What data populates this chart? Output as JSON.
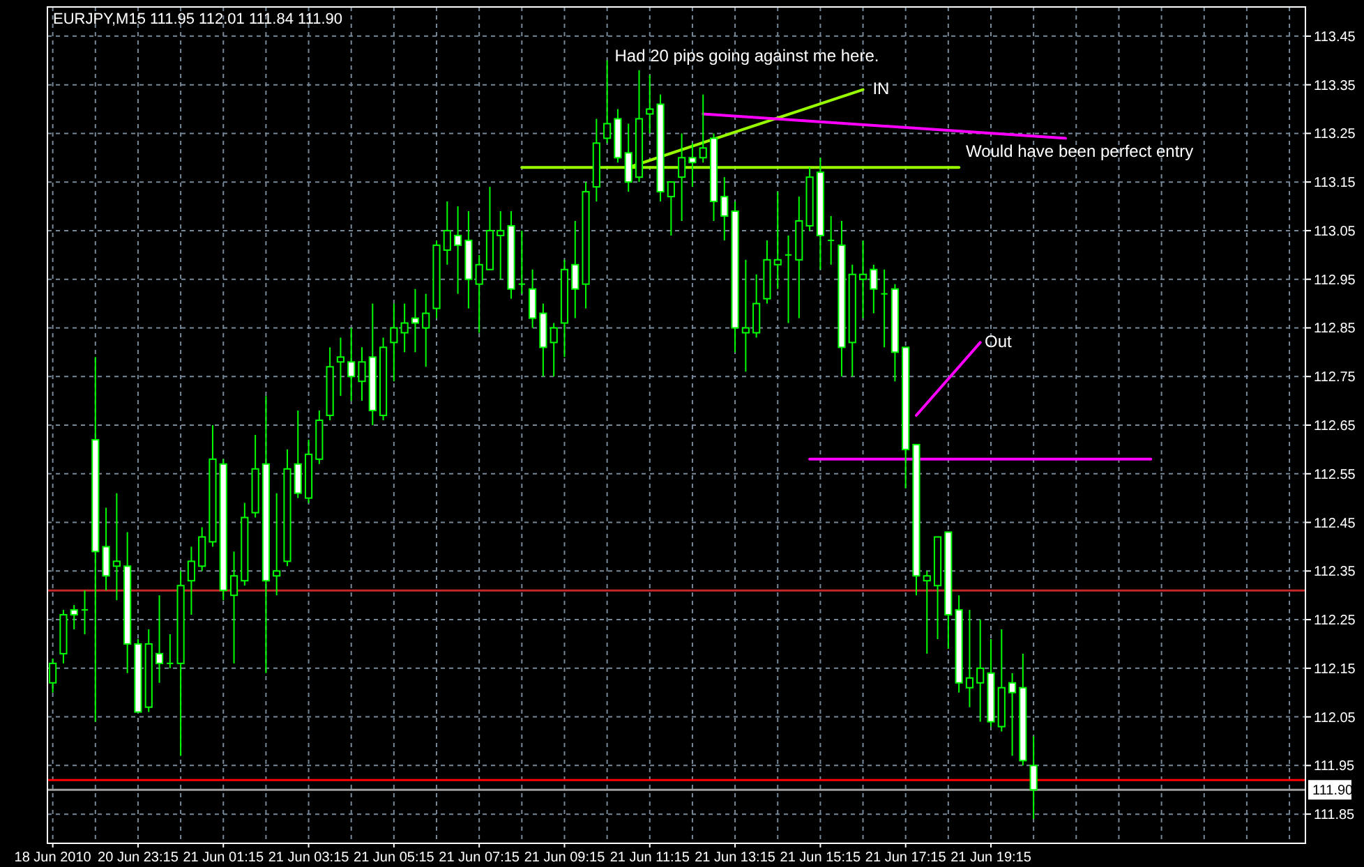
{
  "chart_data": {
    "type": "candlestick",
    "title": "EURJPY,M15  111.95 112.01 111.84 111.90",
    "categories": [
      "18 Jun 2010",
      null,
      null,
      null,
      null,
      null,
      null,
      null,
      "20 Jun 23:15",
      null,
      null,
      null,
      null,
      null,
      null,
      null,
      "21 Jun 01:15",
      null,
      null,
      null,
      null,
      null,
      null,
      null,
      "21 Jun 03:15",
      null,
      null,
      null,
      null,
      null,
      null,
      null,
      "21 Jun 05:15",
      null,
      null,
      null,
      null,
      null,
      null,
      null,
      "21 Jun 07:15",
      null,
      null,
      null,
      null,
      null,
      null,
      null,
      "21 Jun 09:15",
      null,
      null,
      null,
      null,
      null,
      null,
      null,
      "21 Jun 11:15",
      null,
      null,
      null,
      null,
      null,
      null,
      null,
      "21 Jun 13:15",
      null,
      null,
      null,
      null,
      null,
      null,
      null,
      "21 Jun 15:15",
      null,
      null,
      null,
      null,
      null,
      null,
      null,
      "21 Jun 17:15",
      null,
      null,
      null,
      null,
      null,
      null,
      null,
      "21 Jun 19:15",
      null,
      null,
      null,
      null,
      null,
      null,
      null,
      null,
      null,
      null,
      null,
      null,
      null,
      null,
      null,
      null,
      null,
      null,
      null,
      null,
      null,
      null,
      null,
      null,
      null,
      null,
      null,
      null,
      null
    ],
    "ohlc": [
      [
        112.12,
        112.17,
        112.1,
        112.16
      ],
      [
        112.18,
        112.27,
        112.16,
        112.26
      ],
      [
        112.27,
        112.28,
        112.23,
        112.26
      ],
      [
        112.27,
        112.31,
        112.22,
        112.27
      ],
      [
        112.62,
        112.79,
        112.04,
        112.39
      ],
      [
        112.4,
        112.48,
        112.31,
        112.34
      ],
      [
        112.36,
        112.51,
        112.29,
        112.37
      ],
      [
        112.36,
        112.43,
        112.14,
        112.2
      ],
      [
        112.2,
        112.21,
        112.06,
        112.06
      ],
      [
        112.07,
        112.23,
        112.06,
        112.2
      ],
      [
        112.18,
        112.3,
        112.12,
        112.16
      ],
      [
        112.16,
        112.22,
        112.15,
        112.16
      ],
      [
        112.16,
        112.35,
        111.97,
        112.32
      ],
      [
        112.33,
        112.4,
        112.26,
        112.37
      ],
      [
        112.36,
        112.44,
        112.35,
        112.42
      ],
      [
        112.41,
        112.65,
        112.4,
        112.58
      ],
      [
        112.57,
        112.58,
        112.29,
        112.31
      ],
      [
        112.3,
        112.39,
        112.16,
        112.34
      ],
      [
        112.33,
        112.49,
        112.32,
        112.46
      ],
      [
        112.47,
        112.63,
        112.46,
        112.56
      ],
      [
        112.57,
        112.71,
        112.14,
        112.33
      ],
      [
        112.34,
        112.51,
        112.3,
        112.35
      ],
      [
        112.37,
        112.6,
        112.36,
        112.56
      ],
      [
        112.57,
        112.68,
        112.5,
        112.51
      ],
      [
        112.5,
        112.62,
        112.49,
        112.59
      ],
      [
        112.58,
        112.68,
        112.57,
        112.66
      ],
      [
        112.67,
        112.81,
        112.66,
        112.77
      ],
      [
        112.78,
        112.83,
        112.71,
        112.79
      ],
      [
        112.78,
        112.85,
        112.7,
        112.75
      ],
      [
        112.74,
        112.81,
        112.7,
        112.78
      ],
      [
        112.79,
        112.9,
        112.65,
        112.68
      ],
      [
        112.67,
        112.83,
        112.66,
        112.81
      ],
      [
        112.82,
        112.9,
        112.74,
        112.85
      ],
      [
        112.84,
        112.9,
        112.8,
        112.86
      ],
      [
        112.87,
        112.93,
        112.8,
        112.86
      ],
      [
        112.85,
        112.92,
        112.77,
        112.88
      ],
      [
        112.89,
        113.03,
        112.87,
        113.02
      ],
      [
        113.01,
        113.11,
        112.98,
        113.05
      ],
      [
        113.04,
        113.1,
        112.92,
        113.02
      ],
      [
        113.03,
        113.09,
        112.89,
        112.95
      ],
      [
        112.94,
        113.0,
        112.84,
        112.98
      ],
      [
        112.97,
        113.14,
        112.97,
        113.05
      ],
      [
        113.04,
        113.09,
        112.95,
        113.05
      ],
      [
        113.06,
        113.09,
        112.91,
        112.93
      ],
      [
        112.94,
        113.05,
        112.92,
        112.94
      ],
      [
        112.93,
        112.97,
        112.85,
        112.87
      ],
      [
        112.88,
        112.9,
        112.75,
        112.81
      ],
      [
        112.82,
        112.86,
        112.75,
        112.85
      ],
      [
        112.86,
        112.99,
        112.79,
        112.97
      ],
      [
        112.98,
        113.07,
        112.87,
        112.93
      ],
      [
        112.94,
        113.15,
        112.89,
        113.13
      ],
      [
        113.14,
        113.28,
        113.11,
        113.23
      ],
      [
        113.24,
        113.4,
        113.23,
        113.27
      ],
      [
        113.28,
        113.3,
        113.19,
        113.2
      ],
      [
        113.21,
        113.27,
        113.13,
        113.15
      ],
      [
        113.16,
        113.38,
        113.15,
        113.28
      ],
      [
        113.29,
        113.37,
        113.25,
        113.3
      ],
      [
        113.31,
        113.33,
        113.11,
        113.13
      ],
      [
        113.12,
        113.15,
        113.04,
        113.15
      ],
      [
        113.16,
        113.25,
        113.07,
        113.2
      ],
      [
        113.2,
        113.23,
        113.14,
        113.19
      ],
      [
        113.2,
        113.33,
        113.19,
        113.22
      ],
      [
        113.24,
        113.25,
        113.07,
        113.11
      ],
      [
        113.12,
        113.16,
        113.03,
        113.08
      ],
      [
        113.09,
        113.11,
        112.8,
        112.85
      ],
      [
        112.84,
        112.99,
        112.76,
        112.85
      ],
      [
        112.84,
        112.96,
        112.83,
        112.9
      ],
      [
        112.91,
        113.03,
        112.9,
        112.99
      ],
      [
        112.98,
        113.13,
        112.93,
        112.99
      ],
      [
        113.0,
        113.04,
        112.86,
        113.0
      ],
      [
        112.99,
        113.12,
        112.87,
        113.07
      ],
      [
        113.06,
        113.18,
        113.05,
        113.16
      ],
      [
        113.17,
        113.2,
        112.97,
        113.04
      ],
      [
        113.03,
        113.08,
        112.98,
        113.03
      ],
      [
        113.02,
        113.07,
        112.75,
        112.81
      ],
      [
        112.82,
        112.98,
        112.75,
        112.96
      ],
      [
        112.95,
        113.03,
        112.87,
        112.96
      ],
      [
        112.97,
        112.98,
        112.88,
        112.93
      ],
      [
        112.92,
        112.97,
        112.81,
        112.92
      ],
      [
        112.93,
        112.94,
        112.74,
        112.8
      ],
      [
        112.81,
        112.81,
        112.52,
        112.6
      ],
      [
        112.61,
        112.61,
        112.3,
        112.34
      ],
      [
        112.33,
        112.35,
        112.18,
        112.34
      ],
      [
        112.32,
        112.42,
        112.21,
        112.42
      ],
      [
        112.43,
        112.43,
        112.19,
        112.26
      ],
      [
        112.27,
        112.3,
        112.1,
        112.12
      ],
      [
        112.11,
        112.27,
        112.07,
        112.13
      ],
      [
        112.12,
        112.25,
        112.04,
        112.15
      ],
      [
        112.14,
        112.21,
        112.03,
        112.04
      ],
      [
        112.03,
        112.23,
        112.02,
        112.11
      ],
      [
        112.12,
        112.14,
        111.97,
        112.1
      ],
      [
        112.11,
        112.18,
        111.95,
        111.96
      ],
      [
        111.95,
        112.01,
        111.84,
        111.9
      ],
      null,
      null,
      null,
      null,
      null,
      null,
      null,
      null,
      null,
      null,
      null,
      null,
      null,
      null,
      null,
      null,
      null,
      null,
      null,
      null,
      null,
      null,
      null,
      null,
      null
    ],
    "series": [
      {
        "type": "line",
        "color": "#99ff00",
        "values": [
          null,
          null,
          null,
          null,
          null,
          null,
          null,
          null,
          null,
          null,
          null,
          null,
          null,
          null,
          null,
          null,
          null,
          null,
          null,
          null,
          null,
          null,
          null,
          null,
          null,
          null,
          null,
          null,
          null,
          null,
          null,
          null,
          null,
          null,
          null,
          null,
          null,
          null,
          null,
          null,
          null,
          null,
          null,
          null,
          113.18,
          null,
          null,
          null,
          null,
          null,
          null,
          null,
          null,
          null,
          null,
          null,
          null,
          null,
          null,
          null,
          null,
          null,
          null,
          null,
          null,
          null,
          null,
          null,
          null,
          null,
          null,
          null,
          null,
          null,
          null,
          null,
          null,
          null,
          null,
          null,
          null,
          null,
          null,
          null,
          null,
          113.18,
          null,
          null,
          null,
          null,
          null,
          null,
          null,
          null,
          null,
          null,
          null,
          null,
          null,
          null,
          null,
          null,
          null,
          null,
          null,
          null,
          null,
          null,
          null,
          null,
          null,
          null,
          null,
          null,
          null,
          null,
          null,
          null
        ]
      },
      {
        "type": "line",
        "color": "#99ff00",
        "values": [
          null,
          null,
          null,
          null,
          null,
          null,
          null,
          null,
          null,
          null,
          null,
          null,
          null,
          null,
          null,
          null,
          null,
          null,
          null,
          null,
          null,
          null,
          null,
          null,
          null,
          null,
          null,
          null,
          null,
          null,
          null,
          null,
          null,
          null,
          null,
          null,
          null,
          null,
          null,
          null,
          null,
          null,
          null,
          null,
          null,
          null,
          null,
          null,
          null,
          null,
          null,
          null,
          null,
          null,
          113.18,
          null,
          null,
          null,
          null,
          null,
          null,
          null,
          null,
          null,
          null,
          null,
          null,
          null,
          null,
          null,
          null,
          null,
          null,
          null,
          null,
          null,
          113.34,
          null,
          null,
          null,
          null,
          null,
          null,
          null,
          null,
          null,
          null,
          null,
          null,
          null,
          null,
          null,
          null,
          null,
          null,
          null,
          null,
          null,
          null,
          null,
          null,
          null,
          null,
          null,
          null,
          null,
          null,
          null,
          null,
          null,
          null,
          null,
          null,
          null,
          null,
          null,
          null,
          null
        ]
      },
      {
        "type": "line",
        "color": "#ff00ff",
        "values": [
          null,
          null,
          null,
          null,
          null,
          null,
          null,
          null,
          null,
          null,
          null,
          null,
          null,
          null,
          null,
          null,
          null,
          null,
          null,
          null,
          null,
          null,
          null,
          null,
          null,
          null,
          null,
          null,
          null,
          null,
          null,
          null,
          null,
          null,
          null,
          null,
          null,
          null,
          null,
          null,
          null,
          null,
          null,
          null,
          null,
          null,
          null,
          null,
          null,
          null,
          null,
          null,
          null,
          null,
          null,
          null,
          null,
          null,
          null,
          null,
          null,
          113.29,
          null,
          null,
          null,
          null,
          null,
          null,
          null,
          null,
          null,
          null,
          null,
          null,
          null,
          null,
          null,
          null,
          null,
          null,
          null,
          null,
          null,
          null,
          null,
          null,
          null,
          null,
          null,
          null,
          null,
          null,
          null,
          null,
          null,
          113.24,
          null,
          null,
          null,
          null,
          null,
          null,
          null,
          null,
          null,
          null,
          null,
          null,
          null,
          null,
          null,
          null,
          null,
          null,
          null,
          null,
          null,
          null
        ]
      },
      {
        "type": "line",
        "color": "#ff00ff",
        "values": [
          null,
          null,
          null,
          null,
          null,
          null,
          null,
          null,
          null,
          null,
          null,
          null,
          null,
          null,
          null,
          null,
          null,
          null,
          null,
          null,
          null,
          null,
          null,
          null,
          null,
          null,
          null,
          null,
          null,
          null,
          null,
          null,
          null,
          null,
          null,
          null,
          null,
          null,
          null,
          null,
          null,
          null,
          null,
          null,
          null,
          null,
          null,
          null,
          null,
          null,
          null,
          null,
          null,
          null,
          null,
          null,
          null,
          null,
          null,
          null,
          null,
          null,
          null,
          null,
          null,
          null,
          null,
          null,
          null,
          null,
          null,
          112.58,
          null,
          null,
          null,
          null,
          null,
          null,
          null,
          null,
          null,
          null,
          null,
          null,
          null,
          null,
          null,
          null,
          null,
          null,
          null,
          null,
          null,
          null,
          null,
          null,
          null,
          null,
          null,
          null,
          null,
          null,
          null,
          112.58,
          null,
          null,
          null,
          null,
          null,
          null,
          null,
          null,
          null,
          null,
          null,
          null,
          null,
          null
        ]
      },
      {
        "type": "line",
        "color": "#ff00ff",
        "values": [
          null,
          null,
          null,
          null,
          null,
          null,
          null,
          null,
          null,
          null,
          null,
          null,
          null,
          null,
          null,
          null,
          null,
          null,
          null,
          null,
          null,
          null,
          null,
          null,
          null,
          null,
          null,
          null,
          null,
          null,
          null,
          null,
          null,
          null,
          null,
          null,
          null,
          null,
          null,
          null,
          null,
          null,
          null,
          null,
          null,
          null,
          null,
          null,
          null,
          null,
          null,
          null,
          null,
          null,
          null,
          null,
          null,
          null,
          null,
          null,
          null,
          null,
          null,
          null,
          null,
          null,
          null,
          null,
          null,
          null,
          null,
          null,
          null,
          null,
          null,
          null,
          null,
          null,
          null,
          null,
          null,
          112.67,
          null,
          null,
          null,
          null,
          null,
          112.82,
          null,
          null,
          null,
          null,
          null,
          null,
          null,
          null,
          null,
          null,
          null,
          null,
          null,
          null,
          null,
          null,
          null,
          null,
          null,
          null,
          null,
          null,
          null,
          null,
          null,
          null,
          null,
          null,
          null,
          null
        ]
      }
    ],
    "ylim": [
      111.79,
      113.51
    ],
    "yticks": [
      111.85,
      111.95,
      112.05,
      112.15,
      112.25,
      112.35,
      112.45,
      112.55,
      112.65,
      112.75,
      112.85,
      112.95,
      113.05,
      113.15,
      113.25,
      113.35,
      113.45
    ],
    "ref_lines": [
      {
        "axis": "y",
        "value": 112.31,
        "color": "#c62828"
      },
      {
        "axis": "y",
        "value": 111.92,
        "color": "#ff0000"
      },
      {
        "axis": "y",
        "value": 111.9,
        "label": "111.90",
        "color": "#a0a0a0"
      }
    ],
    "annotations": [
      "Had 20 pips going against me here.",
      "IN",
      "Would have been perfect entry",
      "Out"
    ],
    "grid": true
  }
}
